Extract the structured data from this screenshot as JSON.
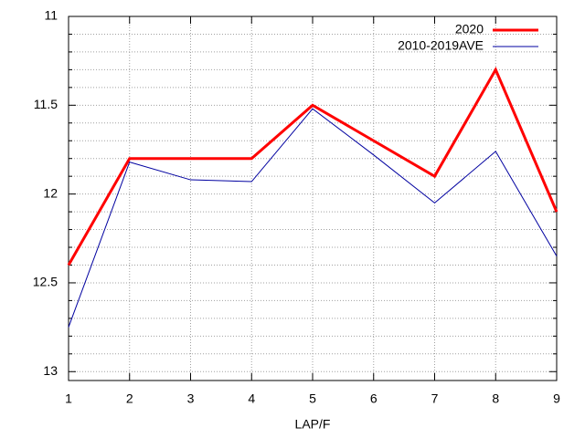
{
  "chart_data": {
    "type": "line",
    "x_label": "LAP/F",
    "x": [
      1,
      2,
      3,
      4,
      5,
      6,
      7,
      8,
      9
    ],
    "xlim": [
      1,
      9
    ],
    "xticks": [
      1,
      2,
      3,
      4,
      5,
      6,
      7,
      8,
      9
    ],
    "ylim": [
      11,
      13.05
    ],
    "y_reversed": true,
    "yticks": [
      11,
      11.5,
      12,
      12.5,
      13
    ],
    "yminorticks": [
      11.1,
      11.2,
      11.3,
      11.4,
      11.6,
      11.7,
      11.8,
      11.9,
      12.1,
      12.2,
      12.3,
      12.4,
      12.6,
      12.7,
      12.8,
      12.9
    ],
    "grid": true,
    "legend": "upper right",
    "series": [
      {
        "name": "2020",
        "color": "#ff0000",
        "width": 3,
        "values": [
          12.4,
          11.8,
          11.8,
          11.8,
          11.5,
          11.7,
          11.9,
          11.3,
          12.1
        ]
      },
      {
        "name": "2010-2019AVE",
        "color": "#0000a0",
        "width": 1,
        "values": [
          12.75,
          11.82,
          11.92,
          11.93,
          11.52,
          11.78,
          12.05,
          11.76,
          12.35
        ]
      }
    ]
  }
}
